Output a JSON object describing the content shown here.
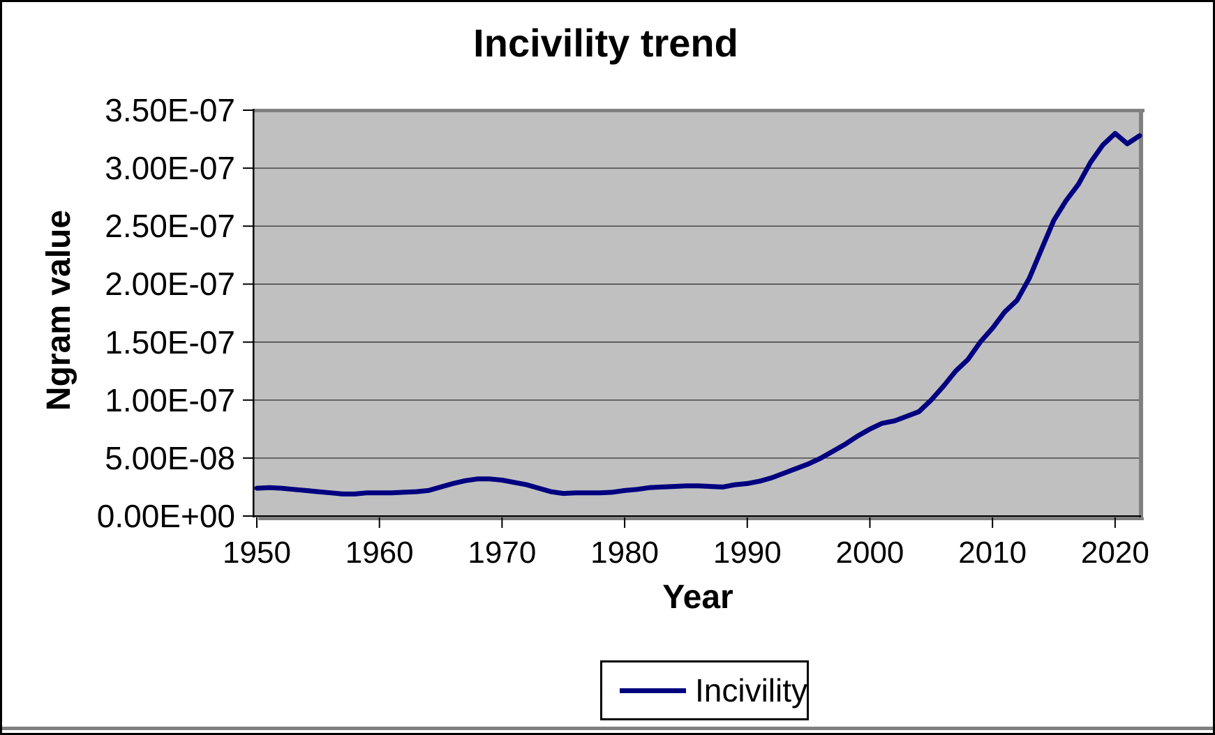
{
  "page": {
    "background": "#FFFFFF",
    "frame_color": "#000000",
    "bottom_rule_color": "#808080"
  },
  "chart_data": {
    "type": "line",
    "title": "Incivility trend",
    "xlabel": "Year",
    "ylabel": "Ngram value",
    "plot_bg": "#C0C0C0",
    "line_color": "#000080",
    "grid": true,
    "gridline_color": "#303030",
    "shadow_border_color": "#808080",
    "xlim": [
      1950,
      2022
    ],
    "ylim": [
      0,
      3.5e-07
    ],
    "x_ticks": [
      1950,
      1960,
      1970,
      1980,
      1990,
      2000,
      2010,
      2020
    ],
    "x_tick_labels": [
      "1950",
      "1960",
      "1970",
      "1980",
      "1990",
      "2000",
      "2010",
      "2020"
    ],
    "y_ticks": [
      0,
      5e-08,
      1e-07,
      1.5e-07,
      2e-07,
      2.5e-07,
      3e-07,
      3.5e-07
    ],
    "y_tick_labels": [
      "0.00E+00",
      "5.00E-08",
      "1.00E-07",
      "1.50E-07",
      "2.00E-07",
      "2.50E-07",
      "3.00E-07",
      "3.50E-07"
    ],
    "legend": {
      "position": "bottom",
      "entries": [
        {
          "label": "Incivility",
          "color": "#000080"
        }
      ]
    },
    "series": [
      {
        "name": "Incivility",
        "x": [
          1950,
          1951,
          1952,
          1953,
          1954,
          1955,
          1956,
          1957,
          1958,
          1959,
          1960,
          1961,
          1962,
          1963,
          1964,
          1965,
          1966,
          1967,
          1968,
          1969,
          1970,
          1971,
          1972,
          1973,
          1974,
          1975,
          1976,
          1977,
          1978,
          1979,
          1980,
          1981,
          1982,
          1983,
          1984,
          1985,
          1986,
          1987,
          1988,
          1989,
          1990,
          1991,
          1992,
          1993,
          1994,
          1995,
          1996,
          1997,
          1998,
          1999,
          2000,
          2001,
          2002,
          2003,
          2004,
          2005,
          2006,
          2007,
          2008,
          2009,
          2010,
          2011,
          2012,
          2013,
          2014,
          2015,
          2016,
          2017,
          2018,
          2019,
          2020,
          2021,
          2022
        ],
        "values": [
          2.4e-08,
          2.45e-08,
          2.4e-08,
          2.3e-08,
          2.2e-08,
          2.1e-08,
          2e-08,
          1.9e-08,
          1.9e-08,
          2e-08,
          2e-08,
          2e-08,
          2.05e-08,
          2.1e-08,
          2.2e-08,
          2.5e-08,
          2.8e-08,
          3.05e-08,
          3.2e-08,
          3.2e-08,
          3.1e-08,
          2.9e-08,
          2.7e-08,
          2.4e-08,
          2.1e-08,
          1.95e-08,
          2e-08,
          2e-08,
          2e-08,
          2.05e-08,
          2.2e-08,
          2.3e-08,
          2.45e-08,
          2.5e-08,
          2.55e-08,
          2.6e-08,
          2.6e-08,
          2.55e-08,
          2.5e-08,
          2.7e-08,
          2.8e-08,
          3e-08,
          3.3e-08,
          3.7e-08,
          4.1e-08,
          4.5e-08,
          5e-08,
          5.6e-08,
          6.2e-08,
          6.9e-08,
          7.5e-08,
          8e-08,
          8.2e-08,
          8.6e-08,
          9e-08,
          1e-07,
          1.12e-07,
          1.25e-07,
          1.35e-07,
          1.5e-07,
          1.62e-07,
          1.76e-07,
          1.86e-07,
          2.05e-07,
          2.3e-07,
          2.55e-07,
          2.72e-07,
          2.86e-07,
          3.05e-07,
          3.2e-07,
          3.3e-07,
          3.21e-07,
          3.28e-07
        ]
      }
    ]
  }
}
